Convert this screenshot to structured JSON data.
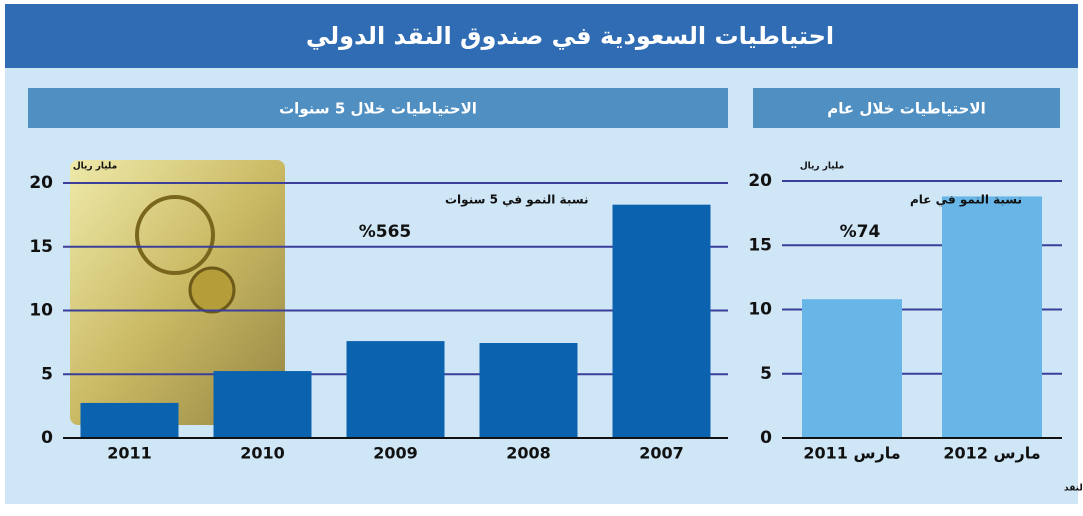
{
  "title": "احتياطيات السعودية في صندوق النقد الدولي",
  "source": "المصدر: بيانات مؤسسة النقد",
  "chart_data": [
    {
      "type": "bar",
      "title": "الاحتياطيات خلال 5 سنوات",
      "unit_label": "مليار ريال",
      "annotation": "نسبة النمو في 5 سنوات",
      "annotation_value": "%565",
      "categories": [
        "2011",
        "2010",
        "2009",
        "2008",
        "2007"
      ],
      "values": [
        2.75,
        5.25,
        7.6,
        7.45,
        18.3
      ],
      "color": "#0b62ae",
      "ylim": [
        0,
        20
      ],
      "yticks": [
        0,
        5,
        10,
        15,
        20
      ],
      "grid": true
    },
    {
      "type": "bar",
      "title": "الاحتياطيات خلال عام",
      "unit_label": "مليار ريال",
      "annotation": "نسبة النمو في عام",
      "annotation_value": "%74",
      "categories": [
        "مارس 2011",
        "مارس 2012"
      ],
      "values": [
        10.8,
        18.8
      ],
      "color": "#68b6e8",
      "ylim": [
        0,
        20
      ],
      "yticks": [
        0,
        5,
        10,
        15,
        20
      ],
      "grid": true
    }
  ]
}
